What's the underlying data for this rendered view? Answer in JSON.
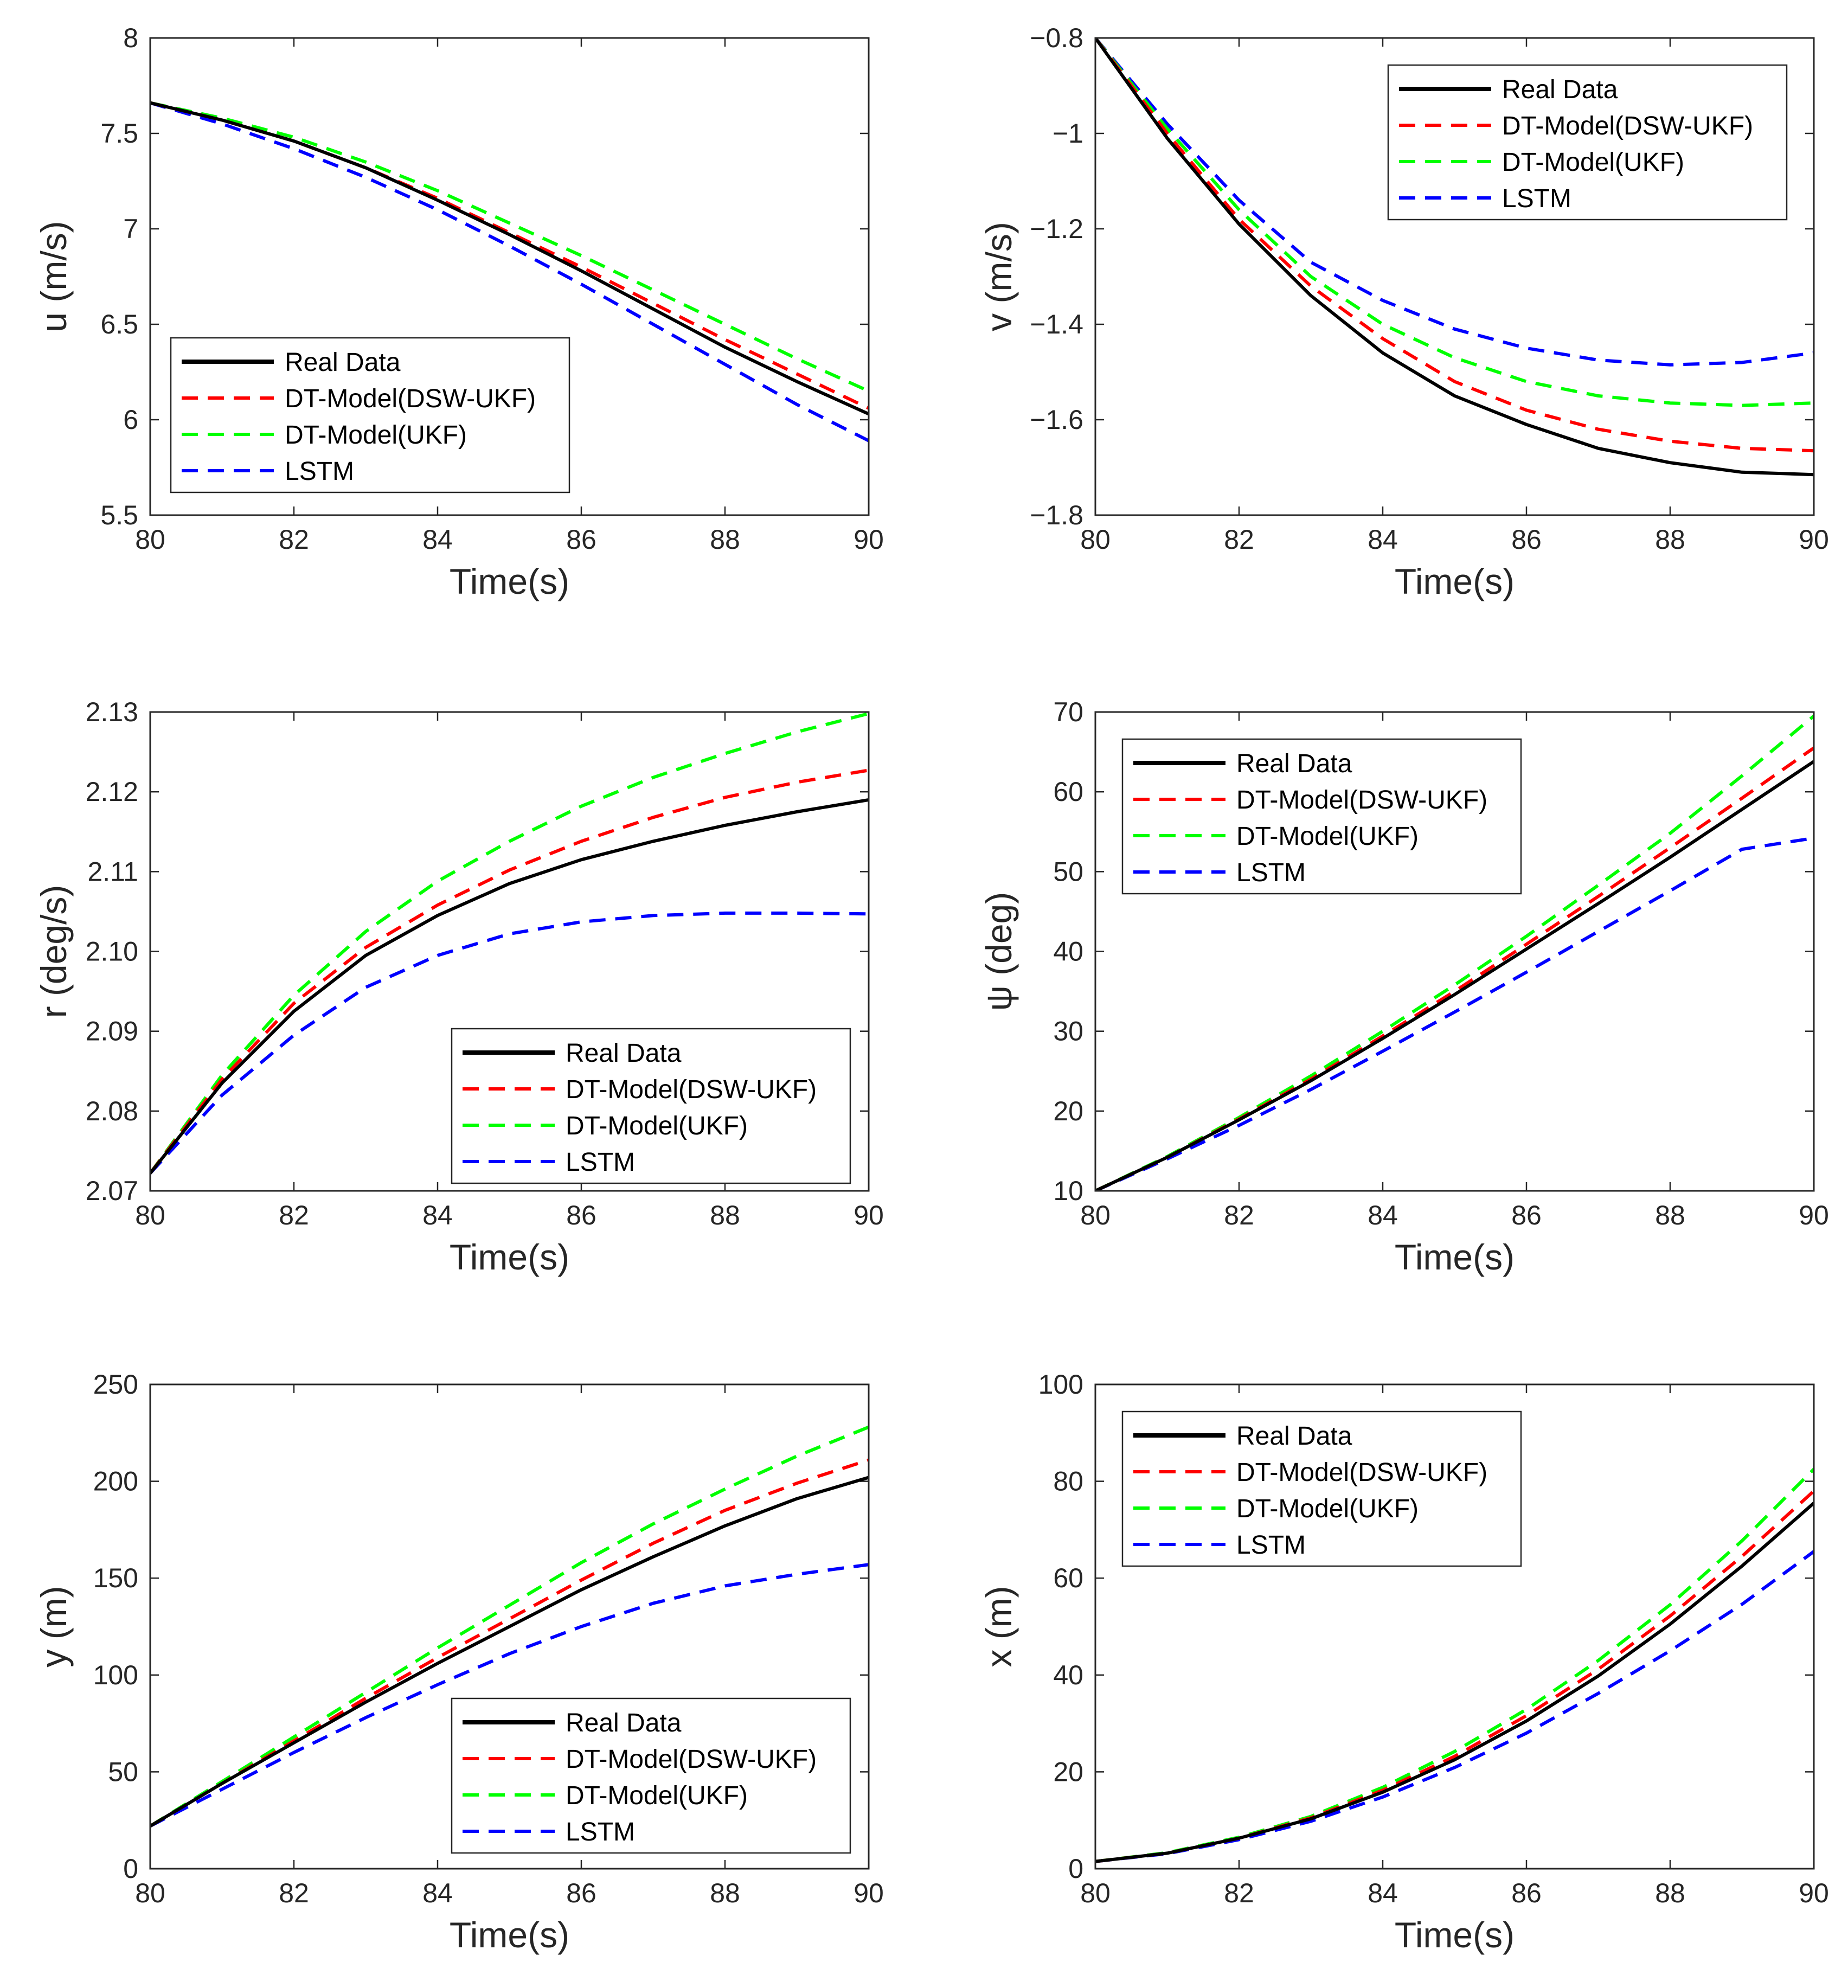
{
  "colors": {
    "real": "#000000",
    "dsw": "#ff0000",
    "ukf": "#00ff00",
    "lstm": "#0000ff"
  },
  "legend": [
    {
      "name": "Real Data",
      "color": "#000000",
      "style": "solid"
    },
    {
      "name": "DT-Model(DSW-UKF)",
      "color": "#ff0000",
      "style": "dashed"
    },
    {
      "name": "DT-Model(UKF)",
      "color": "#00ff00",
      "style": "dashed"
    },
    {
      "name": "LSTM",
      "color": "#0000ff",
      "style": "dashed"
    }
  ],
  "chart_data": [
    {
      "id": "u",
      "type": "line",
      "xlabel": "Time(s)",
      "ylabel": "u (m/s)",
      "xlim": [
        80,
        90
      ],
      "ylim": [
        5.5,
        8
      ],
      "xticks": [
        80,
        82,
        84,
        86,
        88,
        90
      ],
      "yticks": [
        5.5,
        6,
        6.5,
        7,
        7.5,
        8
      ],
      "ytick_labels": [
        "5.5",
        "6",
        "6.5",
        "7",
        "7.5",
        "8"
      ],
      "legend_position": "bottom-left",
      "x": [
        80,
        81,
        82,
        83,
        84,
        85,
        86,
        87,
        88,
        89,
        90
      ],
      "series": [
        {
          "name": "Real Data",
          "values": [
            7.66,
            7.57,
            7.46,
            7.32,
            7.15,
            6.97,
            6.78,
            6.58,
            6.38,
            6.2,
            6.03
          ]
        },
        {
          "name": "DT-Model(DSW-UKF)",
          "values": [
            7.66,
            7.57,
            7.46,
            7.32,
            7.16,
            6.98,
            6.8,
            6.61,
            6.42,
            6.24,
            6.06
          ]
        },
        {
          "name": "DT-Model(UKF)",
          "values": [
            7.66,
            7.58,
            7.48,
            7.35,
            7.2,
            7.03,
            6.86,
            6.68,
            6.5,
            6.32,
            6.15
          ]
        },
        {
          "name": "LSTM",
          "values": [
            7.66,
            7.55,
            7.42,
            7.27,
            7.1,
            6.91,
            6.71,
            6.5,
            6.29,
            6.08,
            5.89
          ]
        }
      ]
    },
    {
      "id": "v",
      "type": "line",
      "xlabel": "Time(s)",
      "ylabel": "v (m/s)",
      "xlim": [
        80,
        90
      ],
      "ylim": [
        -1.8,
        -0.8
      ],
      "xticks": [
        80,
        82,
        84,
        86,
        88,
        90
      ],
      "yticks": [
        -1.8,
        -1.6,
        -1.4,
        -1.2,
        -1,
        -0.8
      ],
      "ytick_labels": [
        "−1.8",
        "−1.6",
        "−1.4",
        "−1.2",
        "−1",
        "−0.8"
      ],
      "legend_position": "top-right",
      "x": [
        80,
        81,
        82,
        83,
        84,
        85,
        86,
        87,
        88,
        89,
        90
      ],
      "series": [
        {
          "name": "Real Data",
          "values": [
            -0.8,
            -1.01,
            -1.19,
            -1.34,
            -1.46,
            -1.55,
            -1.61,
            -1.66,
            -1.69,
            -1.71,
            -1.715
          ]
        },
        {
          "name": "DT-Model(DSW-UKF)",
          "values": [
            -0.8,
            -1.0,
            -1.18,
            -1.32,
            -1.43,
            -1.52,
            -1.58,
            -1.62,
            -1.645,
            -1.66,
            -1.665
          ]
        },
        {
          "name": "DT-Model(UKF)",
          "values": [
            -0.8,
            -0.99,
            -1.16,
            -1.3,
            -1.4,
            -1.47,
            -1.52,
            -1.55,
            -1.565,
            -1.57,
            -1.565
          ]
        },
        {
          "name": "LSTM",
          "values": [
            -0.8,
            -0.98,
            -1.14,
            -1.27,
            -1.35,
            -1.41,
            -1.45,
            -1.475,
            -1.485,
            -1.48,
            -1.46
          ]
        }
      ]
    },
    {
      "id": "r",
      "type": "line",
      "xlabel": "Time(s)",
      "ylabel": "r (deg/s)",
      "xlim": [
        80,
        90
      ],
      "ylim": [
        2.07,
        2.13
      ],
      "xticks": [
        80,
        82,
        84,
        86,
        88,
        90
      ],
      "yticks": [
        2.07,
        2.08,
        2.09,
        2.1,
        2.11,
        2.12,
        2.13
      ],
      "ytick_labels": [
        "2.07",
        "2.08",
        "2.09",
        "2.10",
        "2.11",
        "2.12",
        "2.13"
      ],
      "legend_position": "bottom-right",
      "x": [
        80,
        81,
        82,
        83,
        84,
        85,
        86,
        87,
        88,
        89,
        90
      ],
      "series": [
        {
          "name": "Real Data",
          "values": [
            2.0722,
            2.0835,
            2.0925,
            2.0995,
            2.1045,
            2.1085,
            2.1115,
            2.1138,
            2.1158,
            2.1175,
            2.119
          ]
        },
        {
          "name": "DT-Model(DSW-UKF)",
          "values": [
            2.0722,
            2.084,
            2.0935,
            2.1005,
            2.1058,
            2.1102,
            2.1138,
            2.1168,
            2.1193,
            2.1212,
            2.1227
          ]
        },
        {
          "name": "DT-Model(UKF)",
          "values": [
            2.0722,
            2.0845,
            2.0945,
            2.1025,
            2.1088,
            2.1138,
            2.1182,
            2.1218,
            2.1248,
            2.1275,
            2.1298
          ]
        },
        {
          "name": "LSTM",
          "values": [
            2.0722,
            2.082,
            2.0895,
            2.0955,
            2.0995,
            2.1022,
            2.1037,
            2.1045,
            2.1048,
            2.1048,
            2.1047
          ]
        }
      ]
    },
    {
      "id": "psi",
      "type": "line",
      "xlabel": "Time(s)",
      "ylabel": "ψ (deg)",
      "xlim": [
        80,
        90
      ],
      "ylim": [
        10,
        70
      ],
      "xticks": [
        80,
        82,
        84,
        86,
        88,
        90
      ],
      "yticks": [
        10,
        20,
        30,
        40,
        50,
        60,
        70
      ],
      "ytick_labels": [
        "10",
        "20",
        "30",
        "40",
        "50",
        "60",
        "70"
      ],
      "legend_position": "top-left",
      "x": [
        80,
        81,
        82,
        83,
        84,
        85,
        86,
        87,
        88,
        89,
        90
      ],
      "series": [
        {
          "name": "Real Data",
          "values": [
            10,
            14.2,
            18.9,
            23.8,
            29.1,
            34.6,
            40.3,
            46.0,
            51.8,
            57.8,
            63.8
          ]
        },
        {
          "name": "DT-Model(DSW-UKF)",
          "values": [
            10,
            14.2,
            19.0,
            24.0,
            29.4,
            35.0,
            40.9,
            46.9,
            53.0,
            59.2,
            65.5
          ]
        },
        {
          "name": "DT-Model(UKF)",
          "values": [
            10,
            14.3,
            19.2,
            24.4,
            30.0,
            35.8,
            41.9,
            48.3,
            54.8,
            62.0,
            69.5
          ]
        },
        {
          "name": "LSTM",
          "values": [
            10,
            14.0,
            18.2,
            22.7,
            27.5,
            32.4,
            37.4,
            42.5,
            47.6,
            52.8,
            54.2
          ]
        }
      ]
    },
    {
      "id": "y",
      "type": "line",
      "xlabel": "Time(s)",
      "ylabel": "y (m)",
      "xlim": [
        80,
        90
      ],
      "ylim": [
        0,
        250
      ],
      "xticks": [
        80,
        82,
        84,
        86,
        88,
        90
      ],
      "yticks": [
        0,
        50,
        100,
        150,
        200,
        250
      ],
      "ytick_labels": [
        "0",
        "50",
        "100",
        "150",
        "200",
        "250"
      ],
      "legend_position": "bottom-right",
      "x": [
        80,
        81,
        82,
        83,
        84,
        85,
        86,
        87,
        88,
        89,
        90
      ],
      "series": [
        {
          "name": "Real Data",
          "values": [
            22,
            44,
            65,
            86,
            106,
            125,
            144,
            161,
            177,
            191,
            202
          ]
        },
        {
          "name": "DT-Model(DSW-UKF)",
          "values": [
            22,
            44,
            66,
            88,
            109,
            129,
            149,
            168,
            185,
            199,
            211
          ]
        },
        {
          "name": "DT-Model(UKF)",
          "values": [
            22,
            45,
            68,
            91,
            114,
            136,
            158,
            178,
            196,
            213,
            228
          ]
        },
        {
          "name": "LSTM",
          "values": [
            22,
            41,
            60,
            78,
            95,
            111,
            125,
            137,
            146,
            152,
            157
          ]
        }
      ]
    },
    {
      "id": "x",
      "type": "line",
      "xlabel": "Time(s)",
      "ylabel": "x (m)",
      "xlim": [
        80,
        90
      ],
      "ylim": [
        0,
        100
      ],
      "xticks": [
        80,
        82,
        84,
        86,
        88,
        90
      ],
      "yticks": [
        0,
        20,
        40,
        60,
        80,
        100
      ],
      "ytick_labels": [
        "0",
        "20",
        "40",
        "60",
        "80",
        "100"
      ],
      "legend_position": "top-left",
      "x": [
        80,
        81,
        82,
        83,
        84,
        85,
        86,
        87,
        88,
        89,
        90
      ],
      "series": [
        {
          "name": "Real Data",
          "values": [
            1.5,
            3.2,
            6.3,
            10.3,
            15.8,
            22.5,
            30.5,
            39.8,
            50.5,
            62.5,
            75.5
          ]
        },
        {
          "name": "DT-Model(DSW-UKF)",
          "values": [
            1.5,
            3.2,
            6.3,
            10.5,
            16.2,
            23.2,
            31.6,
            41.2,
            52.2,
            64.5,
            78.0
          ]
        },
        {
          "name": "DT-Model(UKF)",
          "values": [
            1.5,
            3.3,
            6.5,
            10.8,
            16.8,
            24.2,
            32.9,
            43.0,
            54.5,
            67.7,
            82.5
          ]
        },
        {
          "name": "LSTM",
          "values": [
            1.5,
            3.1,
            6.0,
            9.8,
            14.8,
            20.9,
            28.0,
            36.2,
            45.0,
            54.6,
            65.5
          ]
        }
      ]
    }
  ]
}
